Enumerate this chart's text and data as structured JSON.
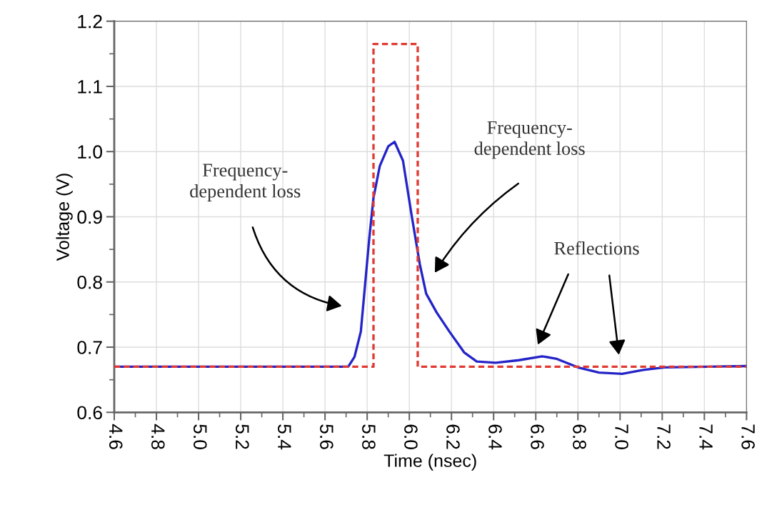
{
  "chart_data": {
    "type": "line",
    "xlabel": "Time (nsec)",
    "ylabel": "Voltage (V)",
    "xlim": [
      4.6,
      7.6
    ],
    "xticks": [
      4.6,
      4.8,
      {
        "value": 5,
        "label": "5.0"
      },
      5.2,
      5.4,
      5.6,
      5.8,
      {
        "value": 6,
        "label": "6.0"
      },
      6.2,
      6.4,
      6.6,
      6.8,
      {
        "value": 7,
        "label": "7.0"
      },
      7.2,
      7.4,
      7.6
    ],
    "ylim": [
      0.6,
      1.2
    ],
    "yticks": [
      0.6,
      0.7,
      0.8,
      0.9,
      {
        "value": 1,
        "label": "1.0"
      },
      1.1,
      1.2
    ],
    "grid": true,
    "legend": false,
    "series": [
      {
        "color": "#e03a32",
        "line_style": "dashed",
        "x": [
          4.6,
          5.83,
          5.83,
          6.04,
          6.04,
          7.6
        ],
        "values": [
          0.67,
          0.67,
          1.165,
          1.165,
          0.67,
          0.67
        ]
      },
      {
        "color": "#2424c8",
        "line_style": "solid",
        "x": [
          4.6,
          5.71,
          5.74,
          5.77,
          5.81,
          5.83,
          5.86,
          5.9,
          5.93,
          5.97,
          6.01,
          6.05,
          6.08,
          6.13,
          6.19,
          6.26,
          6.32,
          6.41,
          6.52,
          6.63,
          6.7,
          6.8,
          6.9,
          7.01,
          7.11,
          7.21,
          7.42,
          7.6
        ],
        "values": [
          0.67,
          0.67,
          0.685,
          0.724,
          0.867,
          0.929,
          0.978,
          1.008,
          1.015,
          0.986,
          0.904,
          0.827,
          0.782,
          0.753,
          0.724,
          0.692,
          0.678,
          0.676,
          0.68,
          0.686,
          0.682,
          0.669,
          0.661,
          0.659,
          0.665,
          0.669,
          0.67,
          0.671
        ]
      }
    ],
    "annotations": [
      "Frequency-\ndependent loss",
      "Frequency-\ndependent loss",
      "Reflections"
    ]
  }
}
